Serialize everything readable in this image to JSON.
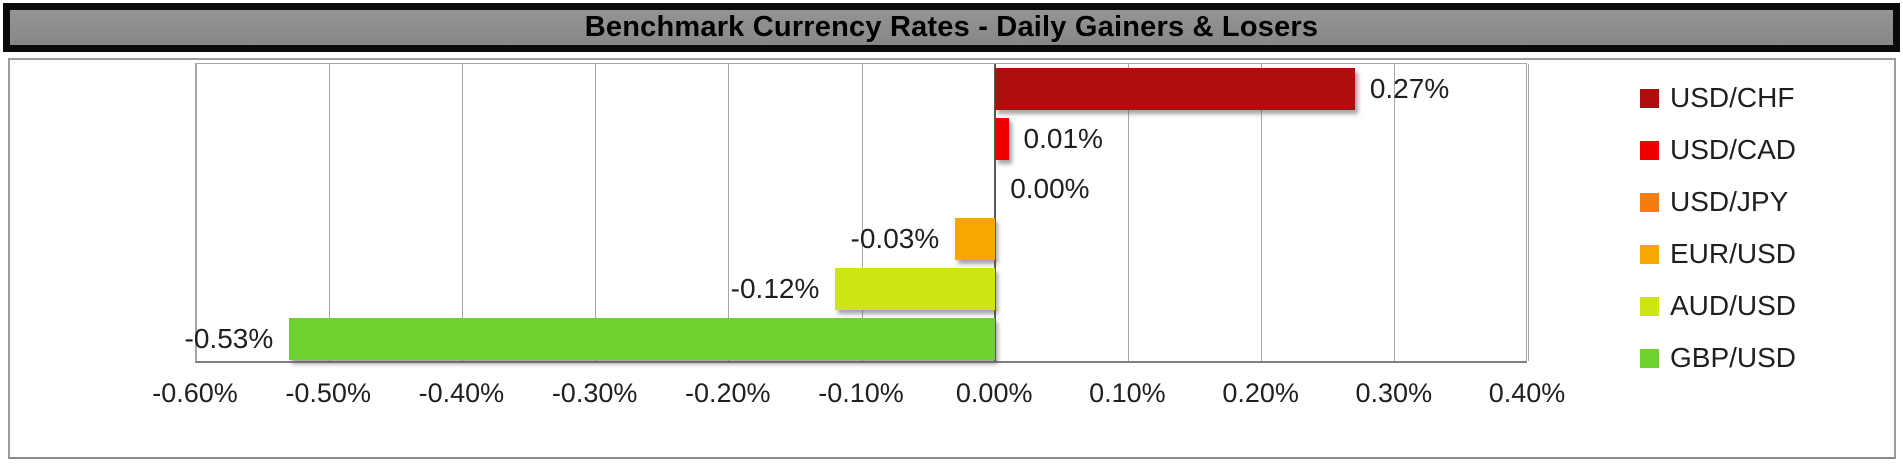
{
  "chart_data": {
    "type": "bar",
    "orientation": "horizontal",
    "title": "Benchmark Currency Rates - Daily Gainers & Losers",
    "categories": [
      "USD/CHF",
      "USD/CAD",
      "USD/JPY",
      "EUR/USD",
      "AUD/USD",
      "GBP/USD"
    ],
    "values": [
      0.27,
      0.01,
      0.0,
      -0.03,
      -0.12,
      -0.53
    ],
    "value_labels": [
      "0.27%",
      "0.01%",
      "0.00%",
      "-0.03%",
      "-0.12%",
      "-0.53%"
    ],
    "bar_colors": [
      "#B00E0E",
      "#EF0000",
      "#F57C0D",
      "#FAA602",
      "#CDE612",
      "#70D02E"
    ],
    "xlim": [
      -0.6,
      0.4
    ],
    "x_tick_values": [
      -0.6,
      -0.5,
      -0.4,
      -0.3,
      -0.2,
      -0.1,
      0.0,
      0.1,
      0.2,
      0.3,
      0.4
    ],
    "x_tick_labels": [
      "-0.60%",
      "-0.50%",
      "-0.40%",
      "-0.30%",
      "-0.20%",
      "-0.10%",
      "0.00%",
      "0.10%",
      "0.20%",
      "0.30%",
      "0.40%"
    ],
    "grid": "vertical",
    "legend_position": "right",
    "legend": [
      {
        "label": "USD/CHF",
        "color": "#B00E0E"
      },
      {
        "label": "USD/CAD",
        "color": "#EF0000"
      },
      {
        "label": "USD/JPY",
        "color": "#F57C0D"
      },
      {
        "label": "EUR/USD",
        "color": "#FAA602"
      },
      {
        "label": "AUD/USD",
        "color": "#CDE612"
      },
      {
        "label": "GBP/USD",
        "color": "#70D02E"
      }
    ],
    "style": {
      "title_bar_fill": "#8C8C8C",
      "title_bar_border": "#0A0A0A",
      "gridline_color": "#A6A6A6",
      "zero_line_color": "#5A5A5A",
      "axis_line_color": "#808080"
    }
  }
}
